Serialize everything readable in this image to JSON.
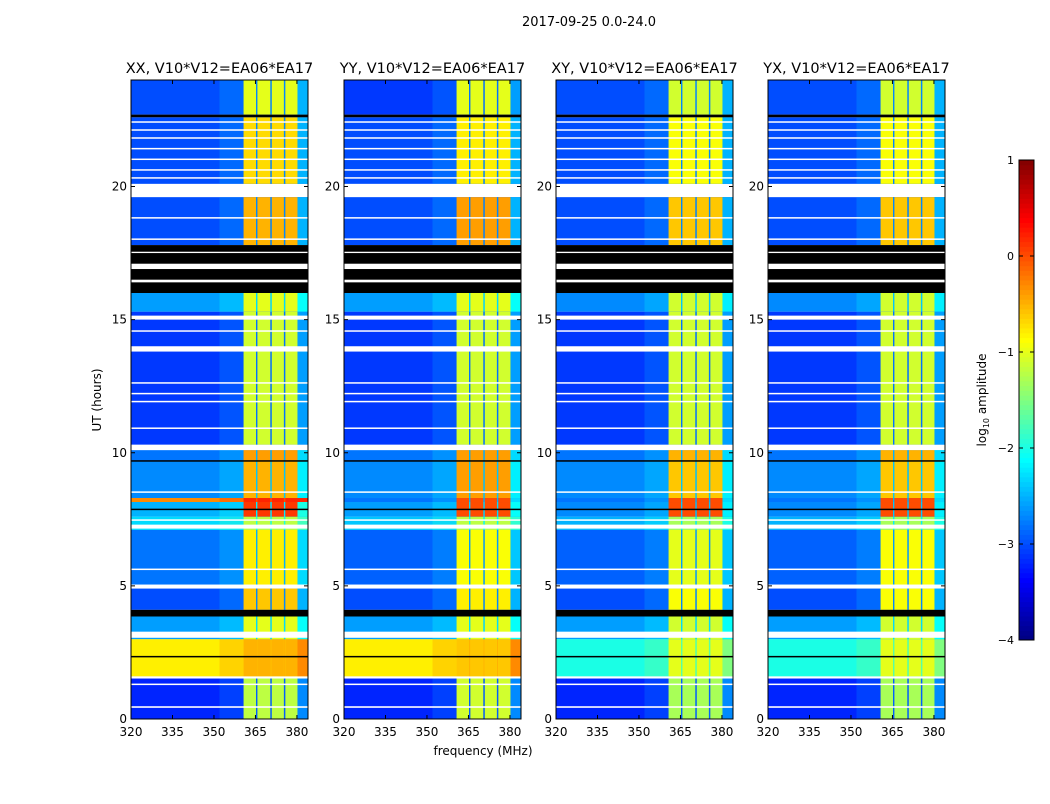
{
  "chart_data": {
    "type": "heatmap",
    "suptitle": "2017-09-25 0.0-24.0",
    "xlabel": "frequency (MHz)",
    "ylabel": "UT (hours)",
    "xlim": [
      320,
      384
    ],
    "ylim": [
      0,
      24
    ],
    "xticks": [
      320,
      335,
      350,
      365,
      380
    ],
    "yticks": [
      0,
      5,
      10,
      15,
      20
    ],
    "colorbar": {
      "label_prefix": "log",
      "label_sub": "10",
      "label_suffix": " amplitude",
      "range": [
        -4,
        1
      ],
      "ticks": [
        -4,
        -3,
        -2,
        -1,
        0,
        1
      ],
      "colormap": "jet"
    },
    "panels": [
      {
        "title": "XX, V10*V12=EA06*EA17"
      },
      {
        "title": "YY, V10*V12=EA06*EA17"
      },
      {
        "title": "XY, V10*V12=EA06*EA17"
      },
      {
        "title": "YX, V10*V12=EA06*EA17"
      }
    ],
    "rfi_subbands": [
      [
        360.7,
        365.2
      ],
      [
        365.7,
        370.4
      ],
      [
        370.9,
        375.3
      ],
      [
        375.8,
        380.2
      ]
    ],
    "segments": [
      {
        "t": [
          0,
          1.6
        ],
        "bg": [
          -3.2,
          -3.2,
          -3.2,
          -3.2
        ],
        "band": [
          -1.2,
          -1.1,
          -1.3,
          -1.3
        ]
      },
      {
        "t": [
          1.6,
          3.0
        ],
        "bg": [
          -0.8,
          -0.8,
          -2.0,
          -2.0
        ],
        "band": [
          -0.5,
          -0.6,
          -1.0,
          -1.0
        ]
      },
      {
        "t": [
          3.0,
          3.9
        ],
        "bg": [
          -2.6,
          -2.6,
          -2.6,
          -2.6
        ],
        "band": [
          -1.0,
          -1.0,
          -1.1,
          -1.1
        ]
      },
      {
        "t": [
          4.1,
          4.9
        ],
        "bg": [
          -3.0,
          -3.0,
          -3.0,
          -3.0
        ],
        "band": [
          -0.6,
          -0.8,
          -0.9,
          -0.9
        ]
      },
      {
        "t": [
          5.0,
          7.1
        ],
        "bg": [
          -2.8,
          -2.9,
          -2.9,
          -2.9
        ],
        "band": [
          -0.8,
          -0.9,
          -1.0,
          -0.9
        ]
      },
      {
        "t": [
          7.1,
          7.6
        ],
        "bg": [
          -2.3,
          -2.4,
          -2.5,
          -2.5
        ],
        "band": [
          -1.2,
          -1.2,
          -1.3,
          -1.3
        ]
      },
      {
        "t": [
          7.6,
          8.15
        ],
        "bg": [
          -2.5,
          -2.6,
          -2.7,
          -2.7
        ],
        "band": [
          0.1,
          0.0,
          0.0,
          0.0
        ]
      },
      {
        "t": [
          8.15,
          8.3
        ],
        "bg": [
          -0.3,
          -2.8,
          -2.8,
          -2.8
        ],
        "band": [
          0.2,
          0.0,
          0.0,
          0.0
        ]
      },
      {
        "t": [
          8.3,
          9.7
        ],
        "bg": [
          -2.7,
          -2.7,
          -2.7,
          -2.7
        ],
        "band": [
          -0.5,
          -0.4,
          -0.6,
          -0.6
        ]
      },
      {
        "t": [
          9.7,
          10.1
        ],
        "bg": [
          -2.8,
          -2.8,
          -2.8,
          -2.8
        ],
        "band": [
          -0.4,
          -0.4,
          -0.5,
          -0.5
        ]
      },
      {
        "t": [
          10.3,
          15.3
        ],
        "bg": [
          -3.1,
          -3.1,
          -3.1,
          -3.1
        ],
        "band": [
          -1.1,
          -1.1,
          -1.1,
          -1.1
        ]
      },
      {
        "t": [
          15.3,
          16.0
        ],
        "bg": [
          -2.6,
          -2.6,
          -2.7,
          -2.7
        ],
        "band": [
          -1.0,
          -1.0,
          -1.1,
          -1.1
        ]
      },
      {
        "t": [
          17.8,
          19.6
        ],
        "bg": [
          -3.0,
          -3.0,
          -3.0,
          -3.0
        ],
        "band": [
          -0.5,
          -0.4,
          -0.6,
          -0.6
        ]
      },
      {
        "t": [
          20.1,
          22.6
        ],
        "bg": [
          -3.0,
          -3.0,
          -3.0,
          -3.0
        ],
        "band": [
          -0.7,
          -0.8,
          -0.9,
          -0.9
        ]
      },
      {
        "t": [
          22.7,
          24
        ],
        "bg": [
          -3.0,
          -3.1,
          -3.0,
          -3.0
        ],
        "band": [
          -1.0,
          -1.0,
          -1.1,
          -1.1
        ]
      }
    ],
    "flagged_white": [
      [
        0.42,
        0.48
      ],
      [
        1.28,
        1.33
      ],
      [
        1.52,
        1.6
      ],
      [
        3.05,
        3.28
      ],
      [
        4.9,
        5.05
      ],
      [
        5.6,
        5.65
      ],
      [
        7.15,
        7.3
      ],
      [
        7.45,
        7.5
      ],
      [
        8.5,
        8.55
      ],
      [
        10.1,
        10.3
      ],
      [
        10.9,
        10.95
      ],
      [
        11.9,
        11.95
      ],
      [
        12.2,
        12.25
      ],
      [
        12.6,
        12.65
      ],
      [
        13.8,
        14.0
      ],
      [
        14.55,
        14.6
      ],
      [
        15.0,
        15.15
      ],
      [
        16.4,
        16.5
      ],
      [
        16.9,
        17.1
      ],
      [
        17.5,
        17.55
      ],
      [
        18.0,
        18.05
      ],
      [
        18.8,
        18.85
      ],
      [
        19.85,
        20.05
      ],
      [
        20.3,
        20.35
      ],
      [
        20.6,
        20.65
      ],
      [
        21.0,
        21.05
      ],
      [
        21.4,
        21.45
      ],
      [
        21.8,
        21.85
      ],
      [
        22.1,
        22.15
      ],
      [
        22.4,
        22.45
      ]
    ],
    "flagged_black": [
      [
        2.33,
        2.37
      ],
      [
        3.85,
        4.1
      ],
      [
        7.85,
        7.9
      ],
      [
        9.68,
        9.72
      ],
      [
        16.0,
        16.4
      ],
      [
        16.5,
        16.9
      ],
      [
        17.1,
        17.5
      ],
      [
        17.55,
        17.8
      ],
      [
        22.6,
        22.7
      ]
    ]
  }
}
